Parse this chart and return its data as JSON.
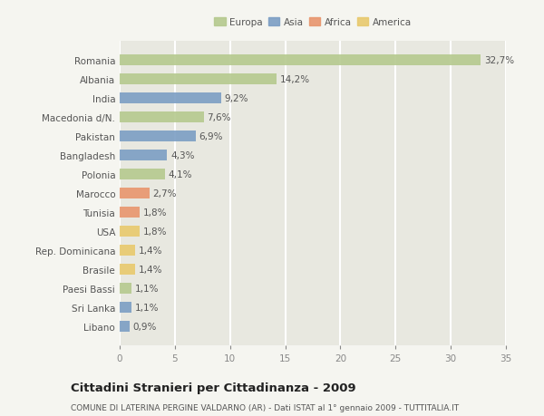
{
  "categories": [
    "Romania",
    "Albania",
    "India",
    "Macedonia d/N.",
    "Pakistan",
    "Bangladesh",
    "Polonia",
    "Marocco",
    "Tunisia",
    "USA",
    "Rep. Dominicana",
    "Brasile",
    "Paesi Bassi",
    "Sri Lanka",
    "Libano"
  ],
  "values": [
    32.7,
    14.2,
    9.2,
    7.6,
    6.9,
    4.3,
    4.1,
    2.7,
    1.8,
    1.8,
    1.4,
    1.4,
    1.1,
    1.1,
    0.9
  ],
  "labels": [
    "32,7%",
    "14,2%",
    "9,2%",
    "7,6%",
    "6,9%",
    "4,3%",
    "4,1%",
    "2,7%",
    "1,8%",
    "1,8%",
    "1,4%",
    "1,4%",
    "1,1%",
    "1,1%",
    "0,9%"
  ],
  "continent": [
    "Europa",
    "Europa",
    "Asia",
    "Europa",
    "Asia",
    "Asia",
    "Europa",
    "Africa",
    "Africa",
    "America",
    "America",
    "America",
    "Europa",
    "Asia",
    "Asia"
  ],
  "colors": {
    "Europa": "#b5c98e",
    "Asia": "#7b9ec4",
    "Africa": "#e8956d",
    "America": "#e8c96d"
  },
  "legend_labels": [
    "Europa",
    "Asia",
    "Africa",
    "America"
  ],
  "legend_colors": [
    "#b5c98e",
    "#7b9ec4",
    "#e8956d",
    "#e8c96d"
  ],
  "title": "Cittadini Stranieri per Cittadinanza - 2009",
  "subtitle": "COMUNE DI LATERINA PERGINE VALDARNO (AR) - Dati ISTAT al 1° gennaio 2009 - TUTTITALIA.IT",
  "xlim": [
    0,
    35
  ],
  "xticks": [
    0,
    5,
    10,
    15,
    20,
    25,
    30,
    35
  ],
  "background_color": "#f5f5f0",
  "plot_bg_color": "#e8e8e0",
  "grid_color": "#ffffff",
  "bar_height": 0.55,
  "label_fontsize": 7.5,
  "tick_fontsize": 7.5,
  "title_fontsize": 9.5,
  "subtitle_fontsize": 6.5
}
